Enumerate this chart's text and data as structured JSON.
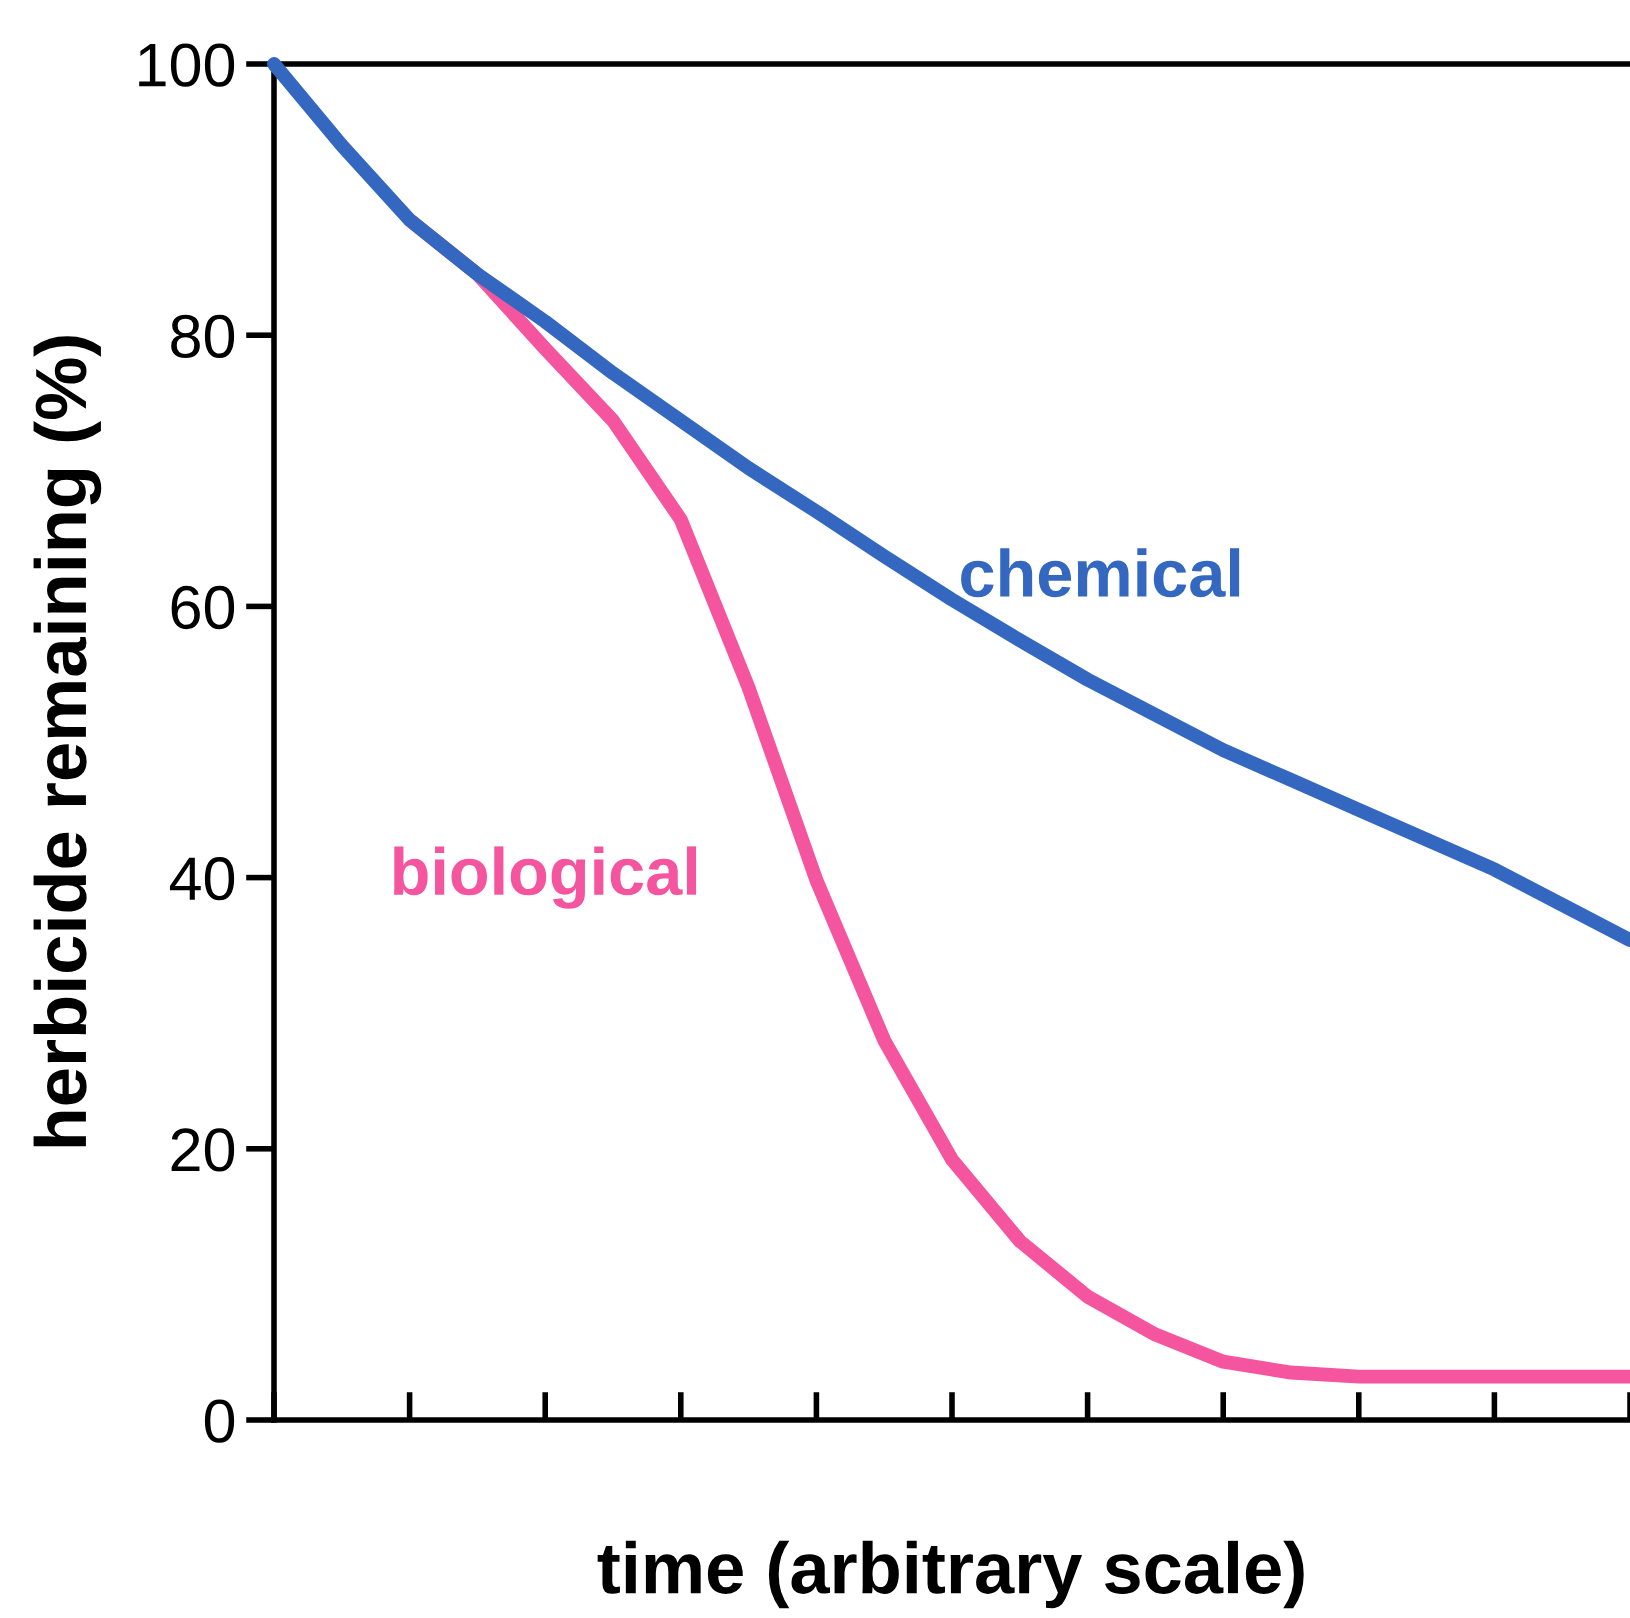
{
  "chart_data": {
    "type": "line",
    "xlabel": "time (arbitrary scale)",
    "ylabel": "herbicide remaining (%)",
    "categories": [
      null,
      null,
      null,
      null,
      null,
      null,
      null,
      null,
      null,
      null,
      null,
      null,
      null,
      null,
      null,
      null,
      null,
      null,
      null,
      null,
      null
    ],
    "ylim": [
      0,
      100
    ],
    "yticks": [
      0,
      20,
      40,
      60,
      80,
      100
    ],
    "grid": false,
    "legend": false,
    "marker": "none",
    "line_style": "solid",
    "series": [
      {
        "color": "#3468c0",
        "values": [
          100,
          94,
          88.5,
          84.5,
          81,
          77.2,
          73.7,
          70.2,
          67,
          63.7,
          60.5,
          57.5,
          54.6,
          52,
          49.4,
          47.2,
          45,
          42.8,
          40.6,
          38,
          35.4
        ]
      },
      {
        "color": "#f5559e",
        "values": [
          null,
          null,
          88.5,
          84.5,
          79,
          73.7,
          66.4,
          54,
          39.8,
          28,
          19.2,
          13.2,
          9.1,
          6.3,
          4.3,
          3.5,
          3.2,
          3.2,
          3.2,
          3.2,
          3.2
        ]
      }
    ],
    "annotations": [
      "chemical",
      "biological"
    ]
  }
}
